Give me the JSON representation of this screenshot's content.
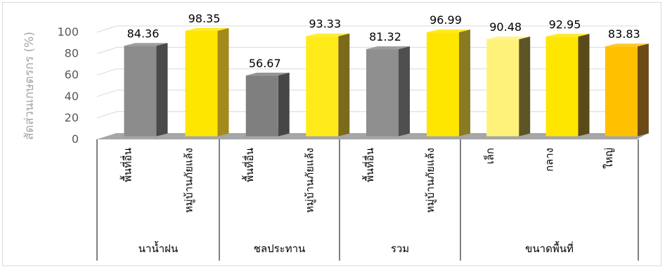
{
  "chart_data": {
    "type": "bar",
    "ylabel": "สัดส่วนเกษตรกร (%)",
    "ylim": [
      0,
      100
    ],
    "yticks": [
      0,
      20,
      40,
      60,
      80,
      100
    ],
    "grid": true,
    "groups": [
      {
        "label": "นาน้ำฝน",
        "bars": [
          {
            "label": "พื้นที่อื่น",
            "value": 84.36,
            "value_label": "84.36",
            "color": "#8c8c8c",
            "side": "#4a4a4a"
          },
          {
            "label": "หมู่บ้านภัยแล้ง",
            "value": 98.35,
            "value_label": "98.35",
            "color": "#ffe600",
            "side": "#a38a1c"
          }
        ]
      },
      {
        "label": "ชลประทาน",
        "bars": [
          {
            "label": "พื้นที่อื่น",
            "value": 56.67,
            "value_label": "56.67",
            "color": "#7f7f7f",
            "side": "#464646"
          },
          {
            "label": "หมู่บ้านภัยแล้ง",
            "value": 93.33,
            "value_label": "93.33",
            "color": "#ffeb1a",
            "side": "#7a6a1a"
          }
        ]
      },
      {
        "label": "รวม",
        "bars": [
          {
            "label": "พื้นที่อื่น",
            "value": 81.32,
            "value_label": "81.32",
            "color": "#8f8f8f",
            "side": "#4f4f4f"
          },
          {
            "label": "หมู่บ้านภัยแล้ง",
            "value": 96.99,
            "value_label": "96.99",
            "color": "#ffe600",
            "side": "#8a7a22"
          }
        ]
      },
      {
        "label": "ขนาดพื้นที่",
        "bars": [
          {
            "label": "เล็ก",
            "value": 90.48,
            "value_label": "90.48",
            "color": "#fff27a",
            "side": "#5e5526"
          },
          {
            "label": "กลาง",
            "value": 92.95,
            "value_label": "92.95",
            "color": "#ffe600",
            "side": "#5a4a1a"
          },
          {
            "label": "ใหญ่",
            "value": 83.83,
            "value_label": "83.83",
            "color": "#ffc000",
            "side": "#6b4a18"
          }
        ]
      }
    ]
  }
}
